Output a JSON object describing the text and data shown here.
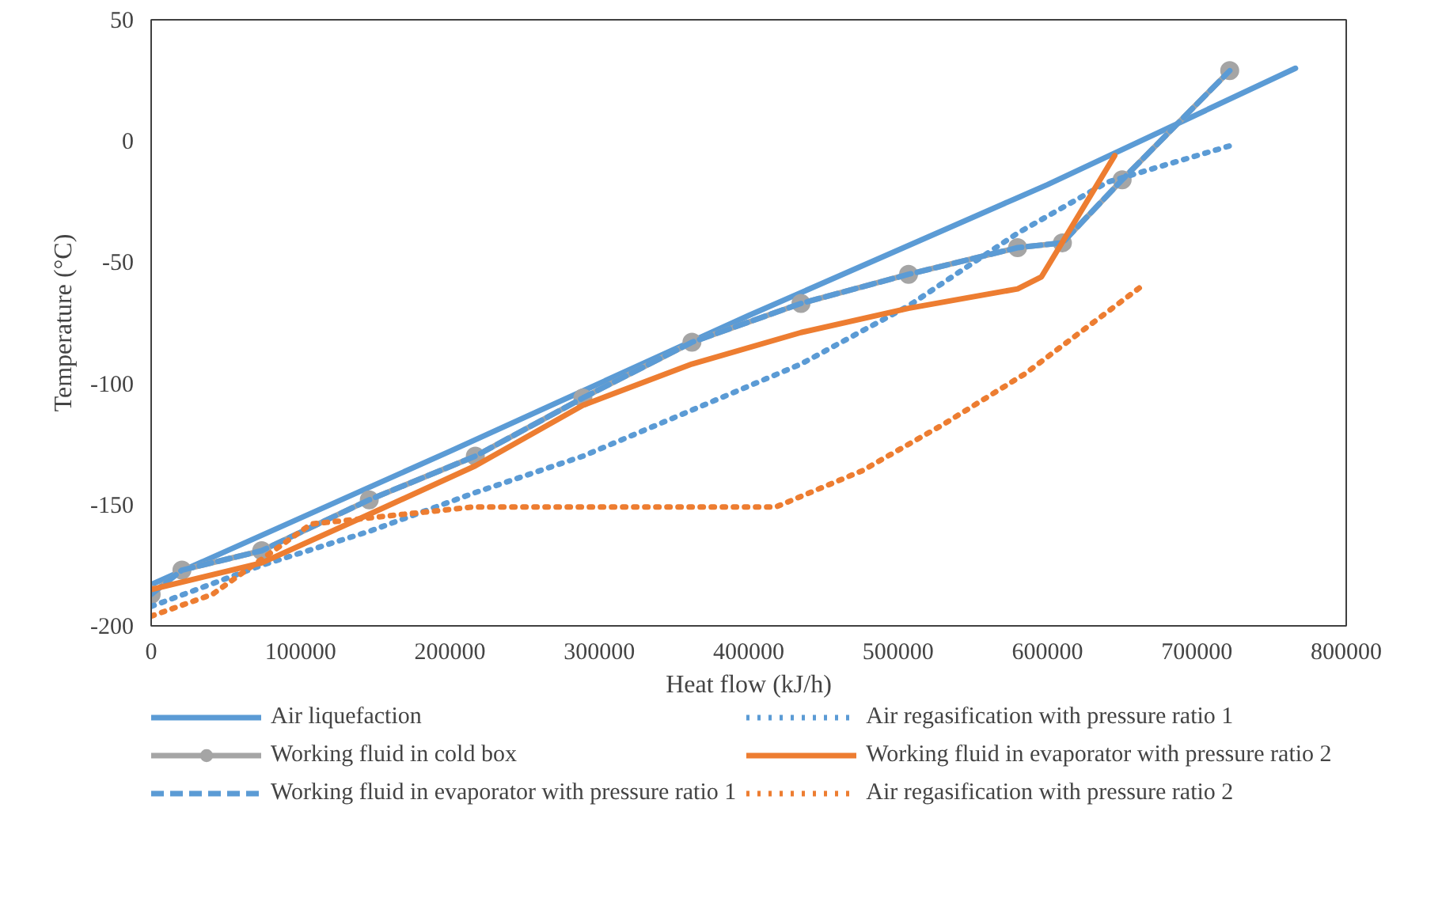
{
  "chart_data": {
    "type": "line",
    "xlabel": "Heat flow (kJ/h)",
    "ylabel": "Temperature (°C)",
    "xlim": [
      0,
      800000
    ],
    "ylim": [
      -200,
      50
    ],
    "xticks": [
      0,
      100000,
      200000,
      300000,
      400000,
      500000,
      600000,
      700000,
      800000
    ],
    "yticks": [
      -200,
      -150,
      -100,
      -50,
      0,
      50
    ],
    "grid": false,
    "legend": "bottom",
    "series": [
      {
        "name": "Air liquefaction",
        "color": "#5b9bd5",
        "line_style": "solid",
        "x": [
          0,
          200000,
          400000,
          600000,
          766000
        ],
        "values": [
          -183,
          -128,
          -72,
          -18,
          30
        ]
      },
      {
        "name": "Working fluid in cold box",
        "color": "#a5a5a5",
        "marker": "circle",
        "line_style": "solid",
        "x": [
          0,
          20600,
          74000,
          146000,
          217000,
          289000,
          362000,
          435000,
          507000,
          580000,
          610000,
          650000,
          722000
        ],
        "values": [
          -187,
          -177,
          -169,
          -148,
          -130,
          -106,
          -83,
          -67,
          -55,
          -44,
          -42,
          -16,
          29
        ]
      },
      {
        "name": "Working fluid in evaporator with pressure ratio 1",
        "color": "#5b9bd5",
        "line_style": "dashed",
        "x": [
          0,
          20600,
          74000,
          146000,
          217000,
          289000,
          362000,
          435000,
          507000,
          580000,
          610000,
          650000,
          722000
        ],
        "values": [
          -187,
          -177,
          -169,
          -148,
          -130,
          -106,
          -83,
          -67,
          -55,
          -44,
          -42,
          -16,
          29
        ]
      },
      {
        "name": "Air regasification with pressure ratio 1",
        "color": "#5b9bd5",
        "line_style": "dotted",
        "x": [
          0,
          74000,
          146000,
          217000,
          289000,
          362000,
          435000,
          507000,
          580000,
          640000,
          722000
        ],
        "values": [
          -192,
          -175,
          -161,
          -145,
          -130,
          -111,
          -92,
          -68,
          -38,
          -17,
          -2
        ]
      },
      {
        "name": "Working fluid in evaporator with pressure ratio 2",
        "color": "#ed7d31",
        "line_style": "solid",
        "x": [
          0,
          74000,
          146000,
          217000,
          289000,
          362000,
          435000,
          507000,
          580000,
          596000,
          645000
        ],
        "values": [
          -185,
          -174,
          -154,
          -134,
          -109,
          -92,
          -79,
          -69,
          -61,
          -56,
          -6
        ]
      },
      {
        "name": "Air regasification with pressure ratio 2",
        "color": "#ed7d31",
        "line_style": "dotted",
        "x": [
          0,
          41000,
          107000,
          215000,
          300000,
          418000,
          476000,
          530000,
          585000,
          639000,
          665000
        ],
        "values": [
          -196,
          -187,
          -158,
          -151,
          -151,
          -151,
          -136,
          -117,
          -96,
          -71,
          -59
        ]
      }
    ]
  }
}
